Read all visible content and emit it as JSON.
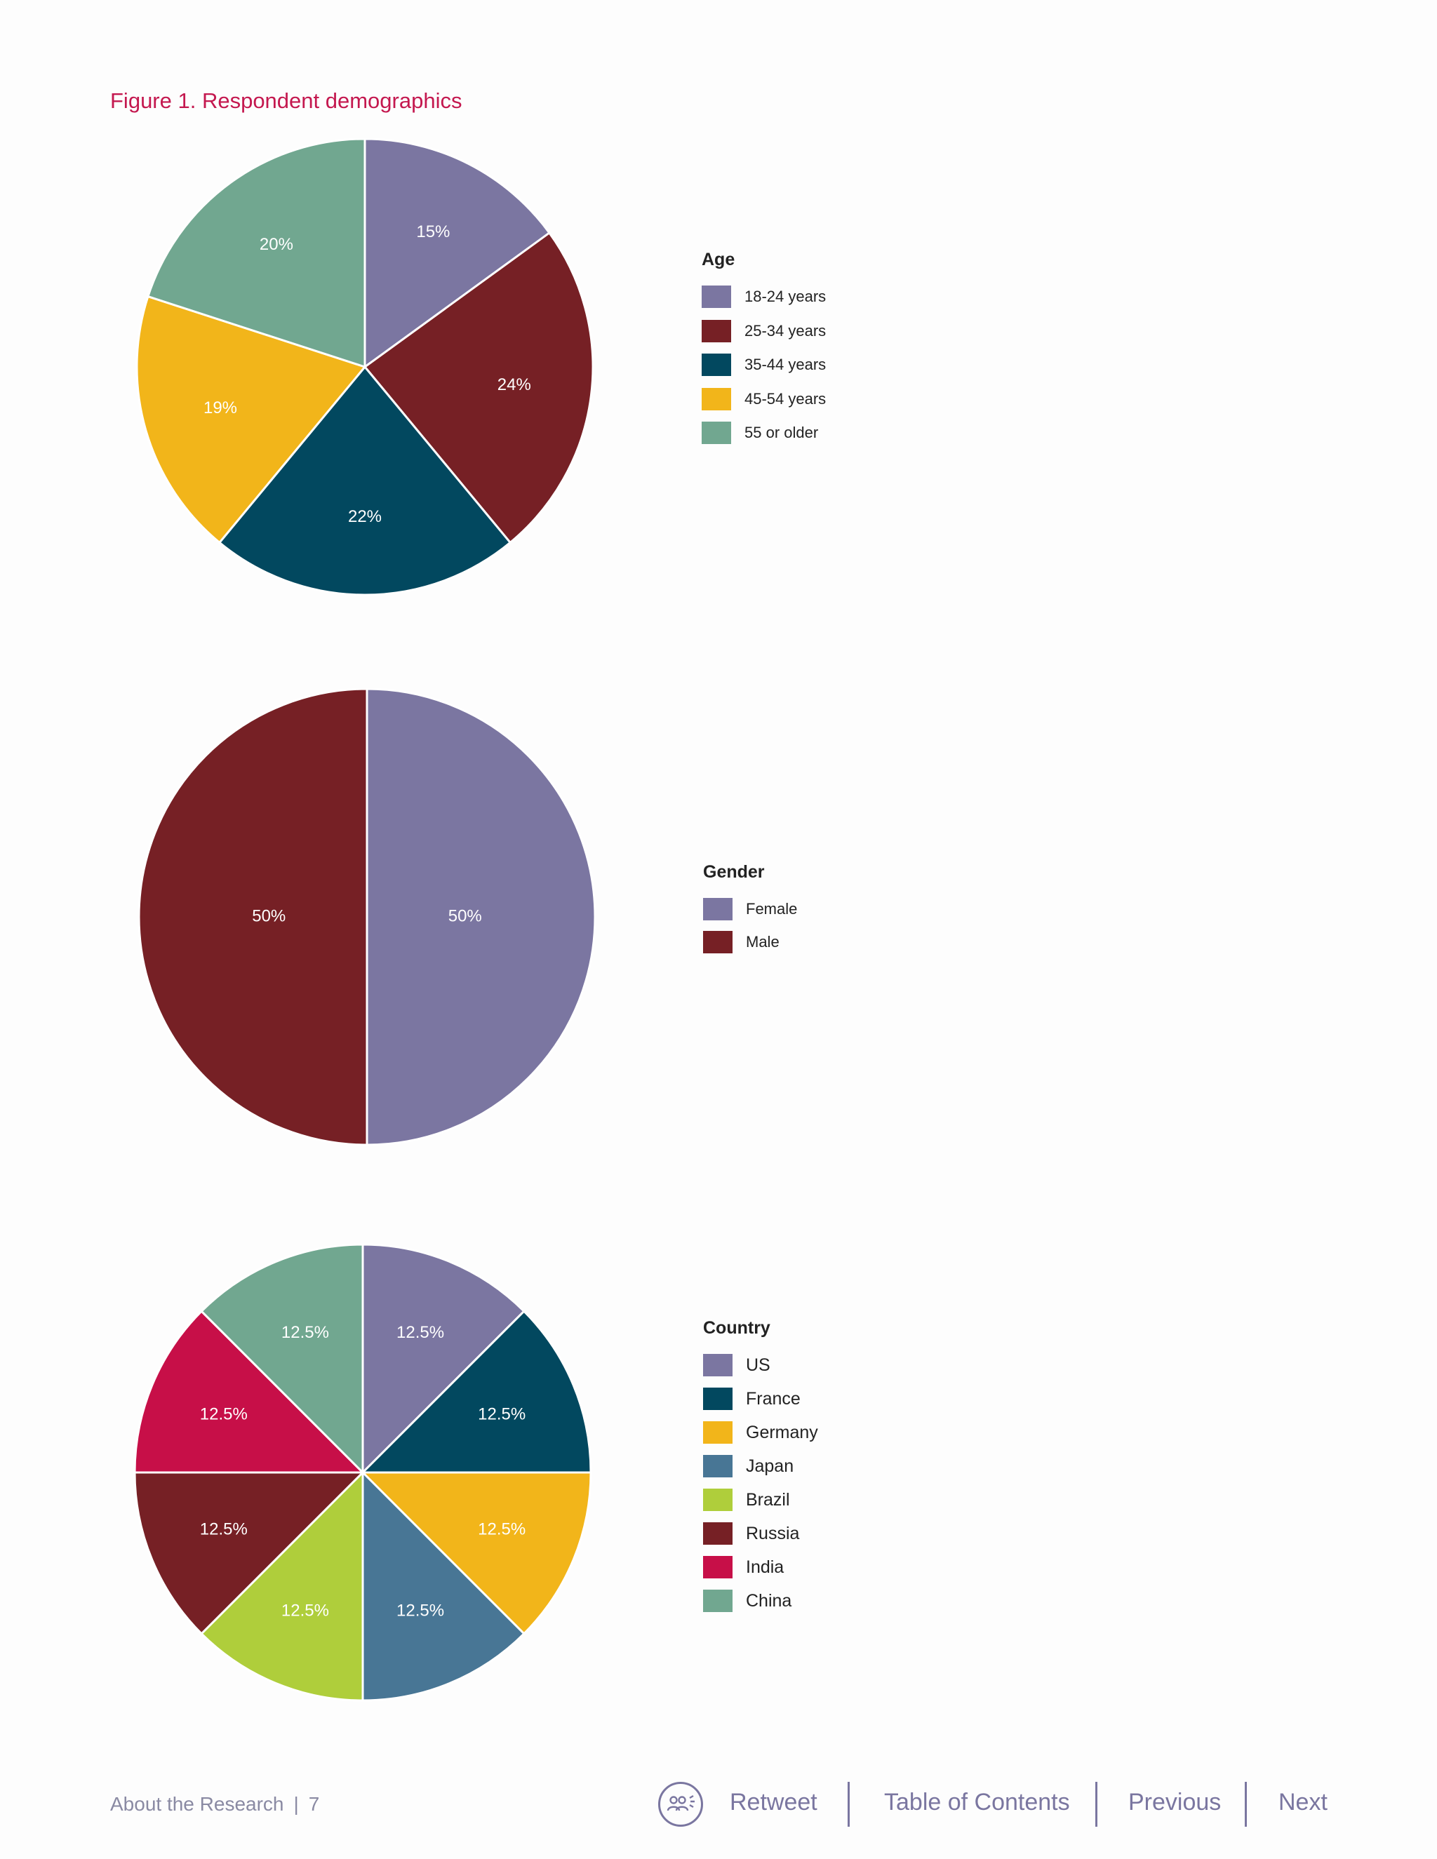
{
  "figure_title": "Figure 1. Respondent demographics",
  "colors": {
    "title": "#c4184f",
    "purple": "#7b76a1",
    "maroon": "#762025",
    "navy": "#02485f",
    "gold": "#f2b51a",
    "sage": "#71a790",
    "steel": "#487695",
    "lime": "#afce3b",
    "crimson": "#c70f48",
    "footer_text": "#8a8aa3",
    "nav": "#7a76a0"
  },
  "chart_data": [
    {
      "type": "pie",
      "title": "Age",
      "categories": [
        "18-24 years",
        "25-34 years",
        "35-44 years",
        "45-54 years",
        "55 or older"
      ],
      "values": [
        15,
        24,
        22,
        19,
        20
      ],
      "labels": [
        "15%",
        "24%",
        "22%",
        "19%",
        "20%"
      ],
      "colors": [
        "#7b76a1",
        "#762025",
        "#02485f",
        "#f2b51a",
        "#71a790"
      ],
      "legend": "right"
    },
    {
      "type": "pie",
      "title": "Gender",
      "categories": [
        "Female",
        "Male"
      ],
      "values": [
        50,
        50
      ],
      "labels": [
        "50%",
        "50%"
      ],
      "colors": [
        "#7b76a1",
        "#762025"
      ],
      "legend": "right"
    },
    {
      "type": "pie",
      "title": "Country",
      "categories": [
        "US",
        "France",
        "Germany",
        "Japan",
        "Brazil",
        "Russia",
        "India",
        "China"
      ],
      "values": [
        12.5,
        12.5,
        12.5,
        12.5,
        12.5,
        12.5,
        12.5,
        12.5
      ],
      "labels": [
        "12.5%",
        "12.5%",
        "12.5%",
        "12.5%",
        "12.5%",
        "12.5%",
        "12.5%",
        "12.5%"
      ],
      "colors": [
        "#7b76a1",
        "#02485f",
        "#f2b51a",
        "#487695",
        "#afce3b",
        "#762025",
        "#c70f48",
        "#71a790"
      ],
      "legend": "right"
    }
  ],
  "footer": {
    "section": "About the Research",
    "separator": "|",
    "page_number": "7",
    "nav": {
      "retweet_icon": "people-group-icon",
      "retweet": "Retweet",
      "toc": "Table of Contents",
      "previous": "Previous",
      "next": "Next"
    }
  }
}
